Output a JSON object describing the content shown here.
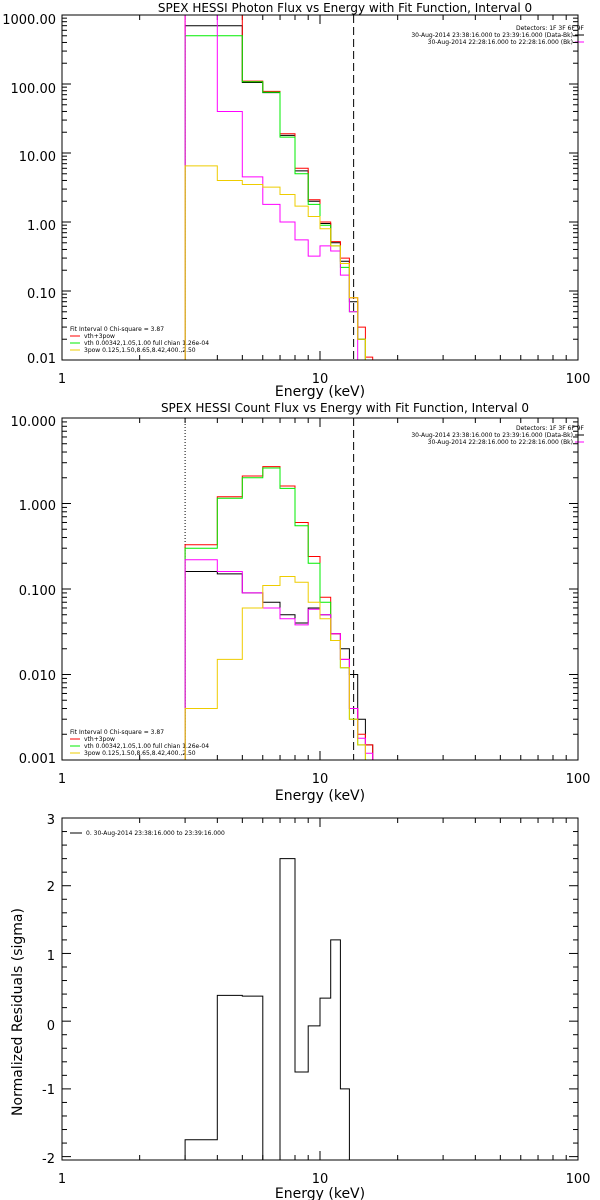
{
  "chart_data": [
    {
      "type": "line",
      "title": "SPEX HESSI Photon Flux vs Energy with Fit Function, Interval 0",
      "xlabel": "Energy (keV)",
      "ylabel": "",
      "x_scale": "log",
      "y_scale": "log",
      "xlim": [
        1,
        100
      ],
      "ylim": [
        0.01,
        1000
      ],
      "x_ticks": [
        "1",
        "10",
        "100"
      ],
      "y_ticks": [
        "0.01",
        "0.10",
        "1.00",
        "10.00",
        "100.00",
        "1000.00"
      ],
      "legend_right": {
        "heading": "Detectors: 1F 3F 6F 9F",
        "entries": [
          {
            "label": "30-Aug-2014 23:38:16.000 to 23:39:16.000 (Data-Bk)",
            "color": "#000000"
          },
          {
            "label": "30-Aug-2014 22:28:16.000 to 22:28:16.000 (Bk)",
            "color": "#ff00ff"
          }
        ]
      },
      "legend_left": {
        "heading": "Fit Interval 0   Chi-square = 3.87",
        "entries": [
          {
            "label": "vth+3pow",
            "color": "#ff0000"
          },
          {
            "label": "vth 0.00342,1.05,1.00  full chian 1.26e-04",
            "color": "#00ee00"
          },
          {
            "label": "3pow 0.125,1.50,8.65,8.42,400.,2.50",
            "color": "#eecc00"
          }
        ]
      },
      "vlines": [
        {
          "x": 3.0,
          "style": "dotted",
          "color": "#ff8800"
        },
        {
          "x": 13.5,
          "style": "dashed",
          "color": "#000000"
        }
      ],
      "bin_edges": [
        3,
        4,
        5,
        6,
        7,
        8,
        9,
        10,
        11,
        12,
        13,
        14,
        15,
        16
      ],
      "series": [
        {
          "color": "#000000",
          "values": [
            700,
            700,
            105,
            75,
            18,
            5.5,
            2.0,
            0.95,
            0.5,
            0.27,
            0.07,
            0.02,
            0.01
          ]
        },
        {
          "color": "#ff0000",
          "values": [
            1000,
            1000,
            110,
            78,
            19,
            6.0,
            2.1,
            1.0,
            0.52,
            0.3,
            0.08,
            0.03,
            0.011
          ]
        },
        {
          "color": "#00ee00",
          "values": [
            500,
            500,
            108,
            76,
            17,
            5.0,
            1.8,
            0.9,
            0.45,
            0.22,
            0.05,
            0.02,
            0.01
          ]
        },
        {
          "color": "#ff00ff",
          "values": [
            1000,
            40,
            4.5,
            1.8,
            1.0,
            0.55,
            0.32,
            0.45,
            0.38,
            0.17,
            0.05,
            0.01,
            0.01
          ]
        },
        {
          "color": "#eecc00",
          "values": [
            6.5,
            4.0,
            3.5,
            3.2,
            2.5,
            1.7,
            1.2,
            0.8,
            0.45,
            0.25,
            0.08,
            0.02,
            0.01
          ]
        }
      ]
    },
    {
      "type": "line",
      "title": "SPEX HESSI Count Flux vs Energy with Fit Function, Interval 0",
      "xlabel": "Energy (keV)",
      "ylabel": "",
      "x_scale": "log",
      "y_scale": "log",
      "xlim": [
        1,
        100
      ],
      "ylim": [
        0.001,
        10
      ],
      "x_ticks": [
        "1",
        "10",
        "100"
      ],
      "y_ticks": [
        "0.001",
        "0.010",
        "0.100",
        "1.000",
        "10.000"
      ],
      "legend_right": {
        "heading": "Detectors: 1F 3F 6F 9F",
        "entries": [
          {
            "label": "30-Aug-2014 23:38:16.000 to 23:39:16.000 (Data-Bk)",
            "color": "#000000"
          },
          {
            "label": "30-Aug-2014 22:28:16.000 to 22:28:16.000 (Bk)",
            "color": "#ff00ff"
          }
        ]
      },
      "legend_left": {
        "heading": "Fit Interval 0   Chi-square = 3.87",
        "entries": [
          {
            "label": "vth+3pow",
            "color": "#ff0000"
          },
          {
            "label": "vth 0.00342,1.05,1.00  full chian 1.26e-04",
            "color": "#00ee00"
          },
          {
            "label": "3pow 0.125,1.50,8.65,8.42,400.,2.50",
            "color": "#eecc00"
          }
        ]
      },
      "vlines": [
        {
          "x": 3.0,
          "style": "dotted",
          "color": "#000000"
        },
        {
          "x": 13.5,
          "style": "dashed",
          "color": "#000000"
        }
      ],
      "bin_edges": [
        3,
        4,
        5,
        6,
        7,
        8,
        9,
        10,
        11,
        12,
        13,
        14,
        15,
        16
      ],
      "series": [
        {
          "color": "#000000",
          "values": [
            0.16,
            0.15,
            0.09,
            0.07,
            0.05,
            0.04,
            0.06,
            0.05,
            0.03,
            0.02,
            0.01,
            0.003,
            0.0015
          ]
        },
        {
          "color": "#ff0000",
          "values": [
            0.33,
            1.2,
            2.1,
            2.7,
            1.6,
            0.6,
            0.24,
            0.08,
            0.03,
            0.015,
            0.004,
            0.002,
            0.0015
          ]
        },
        {
          "color": "#00ee00",
          "values": [
            0.3,
            1.15,
            2.0,
            2.6,
            1.5,
            0.55,
            0.2,
            0.07,
            0.025,
            0.012,
            0.003,
            0.0015,
            0.001
          ]
        },
        {
          "color": "#ff00ff",
          "values": [
            0.22,
            0.16,
            0.09,
            0.06,
            0.045,
            0.038,
            0.058,
            0.05,
            0.03,
            0.015,
            0.004,
            0.0018,
            0.0012
          ]
        },
        {
          "color": "#eecc00",
          "values": [
            0.004,
            0.015,
            0.06,
            0.11,
            0.14,
            0.12,
            0.07,
            0.045,
            0.025,
            0.012,
            0.003,
            0.0015,
            0.001
          ]
        }
      ]
    },
    {
      "type": "line",
      "title": "",
      "xlabel": "Energy (keV)",
      "ylabel": "Normalized Residuals (sigma)",
      "x_scale": "log",
      "y_scale": "linear",
      "xlim": [
        1,
        100
      ],
      "ylim": [
        -2.05,
        3
      ],
      "x_ticks": [
        "1",
        "10",
        "100"
      ],
      "y_ticks": [
        "-2",
        "-1",
        "0",
        "1",
        "2",
        "3"
      ],
      "legend": "0. 30-Aug-2014 23:38:16.000 to 23:39:16.000",
      "bin_edges": [
        3,
        4,
        5,
        6,
        7,
        8,
        9,
        10,
        11,
        12,
        13
      ],
      "series": [
        {
          "color": "#000000",
          "values": [
            -1.75,
            0.38,
            0.37,
            -2.05,
            2.4,
            -0.75,
            -0.07,
            0.34,
            1.2,
            -1.0
          ]
        }
      ]
    }
  ]
}
